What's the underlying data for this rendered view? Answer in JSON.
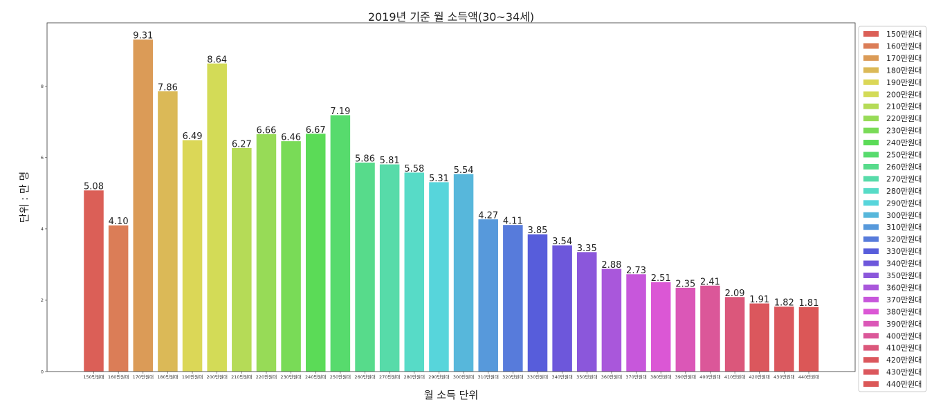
{
  "chart_data": {
    "type": "bar",
    "title": "2019년 기준 월 소득액(30~34세)",
    "xlabel": "월 소득 단위",
    "ylabel": "단위 : 만 명",
    "ylim": [
      0,
      9.78
    ],
    "yticks": [
      0,
      2,
      4,
      6,
      8
    ],
    "grid": false,
    "legend": "right",
    "categories": [
      "150만원대",
      "160만원대",
      "170만원대",
      "180만원대",
      "190만원대",
      "200만원대",
      "210만원대",
      "220만원대",
      "230만원대",
      "240만원대",
      "250만원대",
      "260만원대",
      "270만원대",
      "280만원대",
      "290만원대",
      "300만원대",
      "310만원대",
      "320만원대",
      "330만원대",
      "340만원대",
      "350만원대",
      "360만원대",
      "370만원대",
      "380만원대",
      "390만원대",
      "400만원대",
      "410만원대",
      "420만원대",
      "430만원대",
      "440만원대"
    ],
    "values": [
      5.08,
      4.1,
      9.31,
      7.86,
      6.49,
      8.64,
      6.27,
      6.66,
      6.46,
      6.67,
      7.19,
      5.86,
      5.81,
      5.58,
      5.31,
      5.54,
      4.27,
      4.11,
      3.85,
      3.54,
      3.35,
      2.88,
      2.73,
      2.51,
      2.35,
      2.41,
      2.09,
      1.91,
      1.82,
      1.81
    ],
    "value_labels": [
      "5.08",
      "4.10",
      "9.31",
      "7.86",
      "6.49",
      "8.64",
      "6.27",
      "6.66",
      "6.46",
      "6.67",
      "7.19",
      "5.86",
      "5.81",
      "5.58",
      "5.31",
      "5.54",
      "4.27",
      "4.11",
      "3.85",
      "3.54",
      "3.35",
      "2.88",
      "2.73",
      "2.51",
      "2.35",
      "2.41",
      "2.09",
      "1.91",
      "1.82",
      "1.81"
    ],
    "colors": [
      "#db5f57",
      "#db7d57",
      "#db9b57",
      "#dbb957",
      "#dbd757",
      "#d3db57",
      "#b5db57",
      "#97db57",
      "#79db57",
      "#5bdb57",
      "#57db6d",
      "#57db8b",
      "#57dba9",
      "#57dbc7",
      "#57d5db",
      "#57b7db",
      "#5799db",
      "#577bdb",
      "#575ddb",
      "#6d57db",
      "#8b57db",
      "#a957db",
      "#c757db",
      "#db57d5",
      "#db57b7",
      "#db5799",
      "#db577b",
      "#db575d",
      "#db575d",
      "#db5757"
    ]
  }
}
